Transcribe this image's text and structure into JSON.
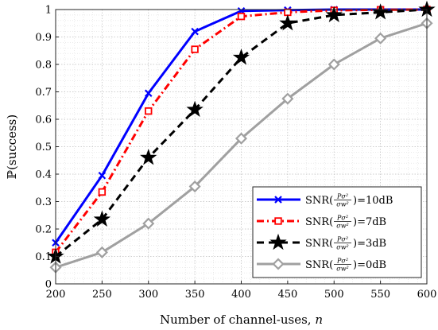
{
  "chart_data": {
    "type": "line",
    "xlabel_prefix": "Number of channel-uses, ",
    "xlabel_var": "n",
    "ylabel": "ℙ(success)",
    "x": [
      200,
      250,
      300,
      350,
      400,
      450,
      500,
      550,
      600
    ],
    "xticks": [
      200,
      250,
      300,
      350,
      400,
      450,
      500,
      550,
      600
    ],
    "yticks": [
      0,
      0.1,
      0.2,
      0.3,
      0.4,
      0.5,
      0.6,
      0.7,
      0.8,
      0.9,
      1
    ],
    "xlim": [
      200,
      600
    ],
    "ylim": [
      0,
      1
    ],
    "grid": true,
    "legend_position": "bottom-right",
    "series": [
      {
        "name": "SNR(Pσ²/σw²)=10dB",
        "legend_prefix": "SNR(",
        "legend_suffix": ")=10dB",
        "color": "#0000ff",
        "style": "solid",
        "marker": "x",
        "values": [
          0.15,
          0.395,
          0.695,
          0.92,
          0.995,
          0.998,
          1.0,
          1.0,
          1.0
        ]
      },
      {
        "name": "SNR(Pσ²/σw²)=7dB",
        "legend_prefix": "SNR(",
        "legend_suffix": ")=7dB",
        "color": "#ff0000",
        "style": "dashdot",
        "marker": "square",
        "values": [
          0.115,
          0.335,
          0.63,
          0.855,
          0.975,
          0.99,
          0.997,
          0.999,
          1.0
        ]
      },
      {
        "name": "SNR(Pσ²/σw²)=3dB",
        "legend_prefix": "SNR(",
        "legend_suffix": ")=3dB",
        "color": "#000000",
        "style": "dashed",
        "marker": "star",
        "values": [
          0.1,
          0.235,
          0.46,
          0.635,
          0.825,
          0.95,
          0.98,
          0.99,
          1.0
        ]
      },
      {
        "name": "SNR(Pσ²/σw²)=0dB",
        "legend_prefix": "SNR(",
        "legend_suffix": ")=0dB",
        "color": "#a0a0a0",
        "style": "solid",
        "marker": "diamond",
        "values": [
          0.06,
          0.115,
          0.22,
          0.355,
          0.53,
          0.675,
          0.8,
          0.895,
          0.95
        ]
      }
    ]
  }
}
